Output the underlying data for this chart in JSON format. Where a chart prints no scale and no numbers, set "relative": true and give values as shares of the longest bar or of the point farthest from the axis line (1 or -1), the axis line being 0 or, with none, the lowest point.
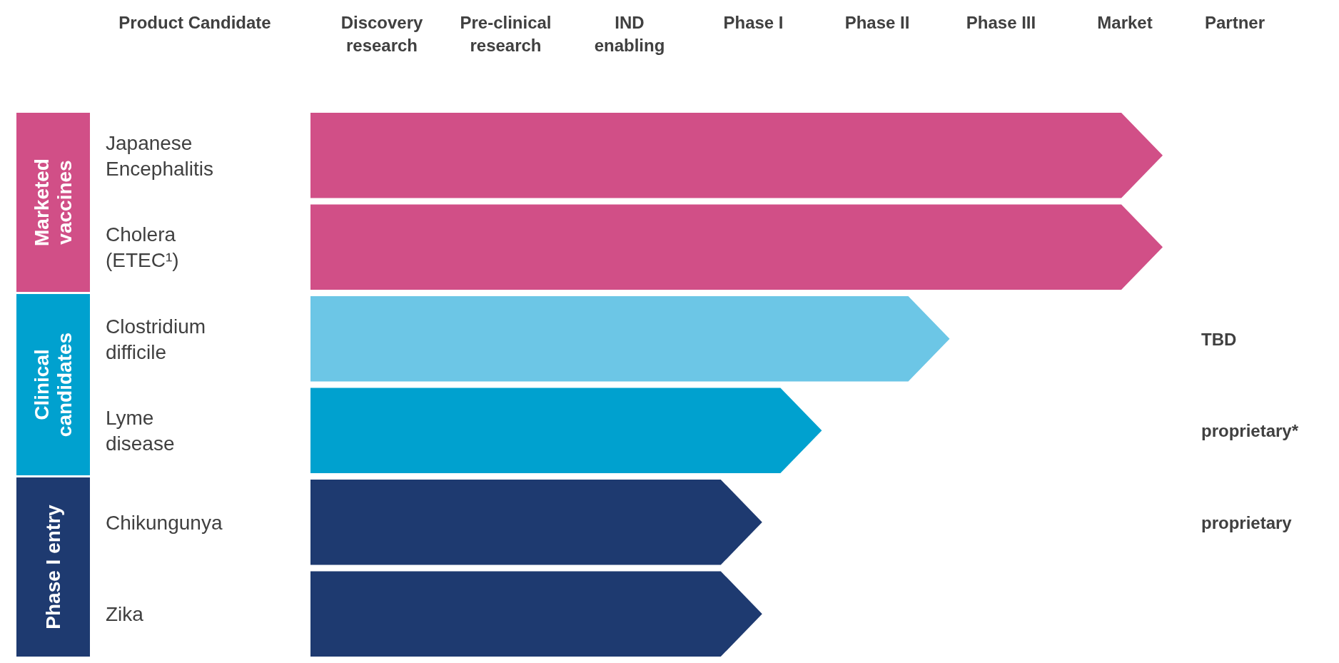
{
  "chart_data": {
    "type": "bar",
    "orientation": "horizontal",
    "relative": true,
    "ylabel": "Product Candidate",
    "categories": [
      "Japanese Encephalitis",
      "Cholera (ETEC¹)",
      "Clostridium difficile",
      "Lyme disease",
      "Chikungunya",
      "Zika"
    ],
    "series": [
      {
        "color": "#d14f87",
        "values": [
          1.0,
          1.0,
          null,
          null,
          null,
          null
        ]
      },
      {
        "color": "#00a1cf",
        "colors": [
          null,
          null,
          "#6cc6e6",
          "#00a1cf",
          null,
          null
        ],
        "values": [
          null,
          null,
          0.75,
          0.6,
          null,
          null
        ]
      },
      {
        "color": "#1e3a70",
        "values": [
          null,
          null,
          null,
          null,
          0.53,
          0.53
        ]
      }
    ],
    "value_labels": [
      null,
      null,
      "TBD",
      "proprietary*",
      "proprietary",
      null
    ],
    "annotations": [
      "Discovery research",
      "Pre-clinical research",
      "IND enabling",
      "Phase I",
      "Phase II",
      "Phase III",
      "Market",
      "Partner",
      "Marketed vaccines",
      "Clinical candidates",
      "Phase I entry"
    ]
  }
}
